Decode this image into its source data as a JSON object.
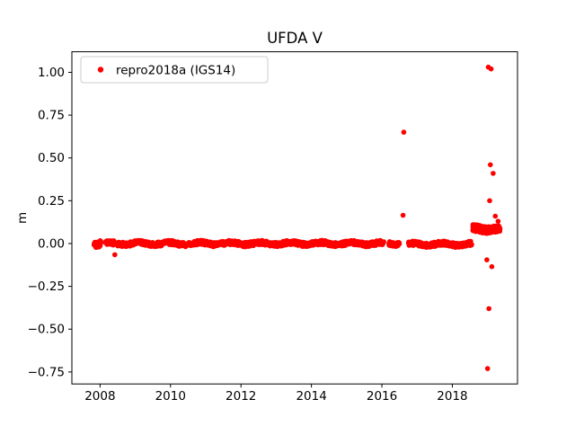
{
  "figure": {
    "background": "#ffffff"
  },
  "chart_data": {
    "type": "scatter",
    "title": "UFDA V",
    "xlabel": "",
    "ylabel": "m",
    "xlim": [
      2007.2,
      2019.85
    ],
    "ylim": [
      -0.82,
      1.12
    ],
    "xticks": [
      2008,
      2010,
      2012,
      2014,
      2016,
      2018
    ],
    "yticks": [
      -0.75,
      -0.5,
      -0.25,
      0.0,
      0.25,
      0.5,
      0.75,
      1.0
    ],
    "grid": false,
    "legend_position": "upper left",
    "legend": [
      "repro2018a (IGS14)"
    ],
    "series_color": "#ff0000",
    "marker": "circle",
    "marker_radius_px": 2.8,
    "band_segments": [
      {
        "x_start": 2007.83,
        "x_end": 2008.02,
        "y_level": 0.0,
        "spread": 0.018,
        "points": 40
      },
      {
        "x_start": 2008.15,
        "x_end": 2016.05,
        "y_level": 0.0,
        "spread": 0.013,
        "points": 950
      },
      {
        "x_start": 2016.2,
        "x_end": 2016.5,
        "y_level": 0.0,
        "spread": 0.012,
        "points": 40
      },
      {
        "x_start": 2016.75,
        "x_end": 2018.55,
        "y_level": -0.004,
        "spread": 0.013,
        "points": 230
      },
      {
        "x_start": 2018.58,
        "x_end": 2019.35,
        "y_level": 0.085,
        "spread": 0.02,
        "points": 260
      }
    ],
    "outliers": [
      [
        2008.42,
        -0.065
      ],
      [
        2016.6,
        0.165
      ],
      [
        2016.62,
        0.65
      ],
      [
        2019.02,
        1.03
      ],
      [
        2019.1,
        1.02
      ],
      [
        2019.08,
        0.46
      ],
      [
        2019.16,
        0.41
      ],
      [
        2019.06,
        0.25
      ],
      [
        2019.22,
        0.16
      ],
      [
        2019.3,
        0.13
      ],
      [
        2018.98,
        -0.095
      ],
      [
        2019.12,
        -0.135
      ],
      [
        2019.04,
        -0.38
      ],
      [
        2019.0,
        -0.73
      ]
    ]
  }
}
